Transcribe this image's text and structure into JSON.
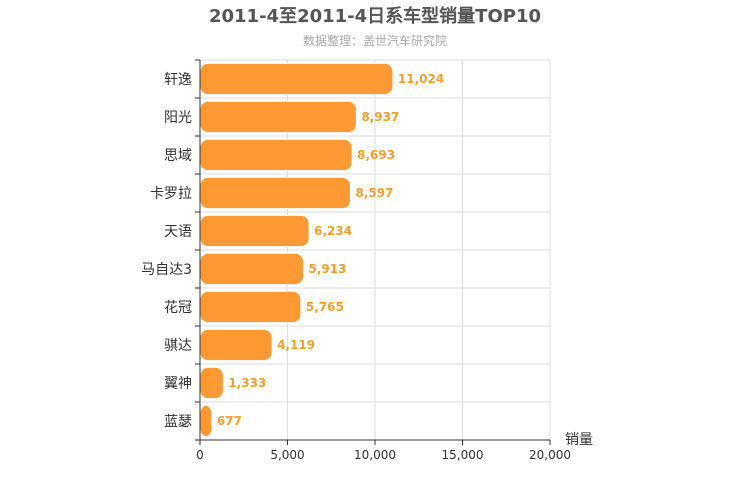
{
  "chart_data": {
    "type": "bar",
    "orientation": "horizontal",
    "title": "2011-4至2011-4日系车型销量TOP10",
    "subtitle": "数据整理：盖世汽车研究院",
    "xlabel": "销量",
    "ylabel": "",
    "xlim": [
      0,
      20000
    ],
    "x_ticks": [
      0,
      5000,
      10000,
      15000,
      20000
    ],
    "x_tick_labels": [
      "0",
      "5,000",
      "10,000",
      "15,000",
      "20,000"
    ],
    "grid": true,
    "categories": [
      "轩逸",
      "阳光",
      "思域",
      "卡罗拉",
      "天语",
      "马自达3",
      "花冠",
      "骐达",
      "翼神",
      "蓝瑟"
    ],
    "values": [
      11024,
      8937,
      8693,
      8597,
      6234,
      5913,
      5765,
      4119,
      1333,
      677
    ],
    "value_labels": [
      "11,024",
      "8,937",
      "8,693",
      "8,597",
      "6,234",
      "5,913",
      "5,765",
      "4,119",
      "1,333",
      "677"
    ],
    "colors": {
      "bar": "#ff9933",
      "bar_stroke": "#ffffff",
      "data_label": "#f0a030",
      "grid": "#dddddd",
      "axis": "#333333",
      "title": "#555555",
      "subtitle": "#aaaaaa"
    }
  }
}
